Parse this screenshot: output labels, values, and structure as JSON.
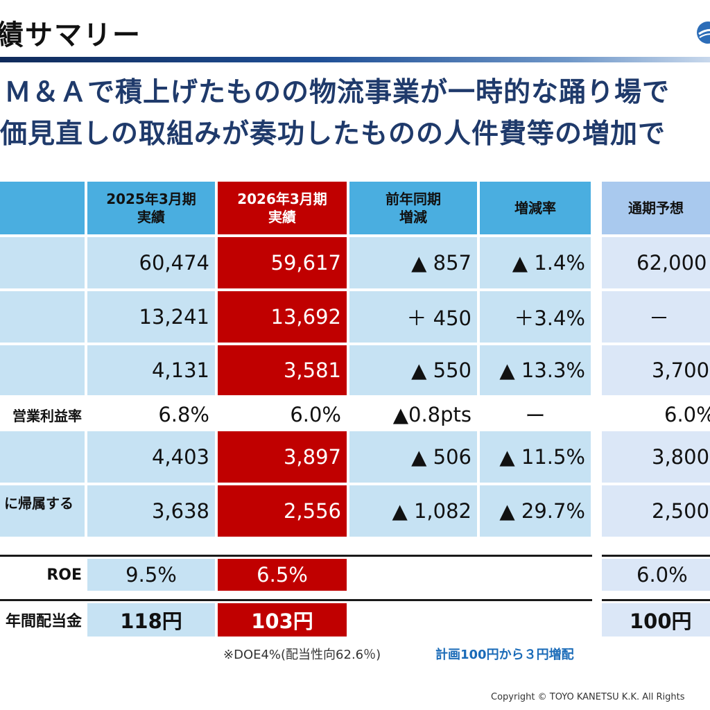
{
  "title": "績サマリー",
  "headline": {
    "line1": "Ｍ＆Ａで積上げたものの物流事業が一時的な踊り場で",
    "line2": "価見直しの取組みが奏功したものの人件費等の増加で"
  },
  "columns": {
    "prev_label": "2025年3月期",
    "prev_sub": "実績",
    "curr_label": "2026年3月期",
    "curr_sub": "実績",
    "diff_label": "前年同期",
    "diff_sub": "増減",
    "rate_label": "増減率",
    "forecast_label": "通期予想"
  },
  "rows": [
    {
      "label": "",
      "prev": "60,474",
      "curr": "59,617",
      "diff": "▲ 857",
      "rate": "▲ 1.4%",
      "forecast": "62,000"
    },
    {
      "label": "",
      "prev": "13,241",
      "curr": "13,692",
      "diff": "＋ 450",
      "rate": "＋3.4%",
      "forecast": "－"
    },
    {
      "label": "",
      "prev": "4,131",
      "curr": "3,581",
      "diff": "▲ 550",
      "rate": "▲ 13.3%",
      "forecast": "3,700"
    },
    {
      "label": "営業利益率",
      "prev": "6.8%",
      "curr": "6.0%",
      "diff": "▲0.8pts",
      "rate": "ー",
      "forecast": "6.0%"
    },
    {
      "label": "",
      "prev": "4,403",
      "curr": "3,897",
      "diff": "▲ 506",
      "rate": "▲ 11.5%",
      "forecast": "3,800"
    },
    {
      "label": "に帰属する",
      "prev": "3,638",
      "curr": "2,556",
      "diff": "▲ 1,082",
      "rate": "▲ 29.7%",
      "forecast": "2,500"
    }
  ],
  "roe": {
    "label": "ROE",
    "prev": "9.5%",
    "curr": "6.5%",
    "forecast": "6.0%"
  },
  "dividend": {
    "label": "年間配当金",
    "prev": "118円",
    "curr": "103円",
    "forecast": "100円"
  },
  "notes": {
    "doe": "※DOE4%(配当性向62.6％)",
    "plan": "計画100円から３円増配"
  },
  "copyright": "Copyright ©  TOYO KANETSU K.K. All Rights",
  "colors": {
    "accent_red": "#c00000",
    "header_blue": "#4aaee0",
    "light_blue": "#c6e2f3",
    "navy": "#1f3a6b"
  },
  "logo_icon": "company-logo-icon"
}
